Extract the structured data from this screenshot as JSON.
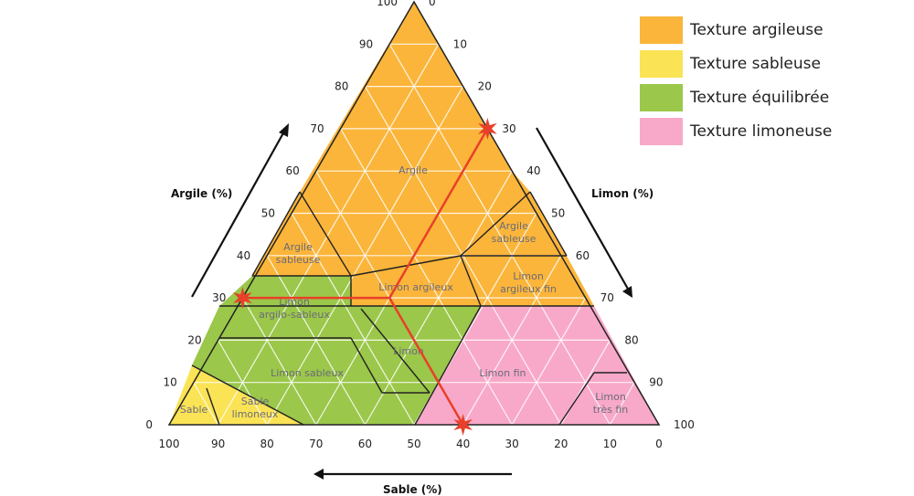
{
  "colors": {
    "clay": "#fbb53a",
    "sand": "#fbe356",
    "balanced": "#9bc74a",
    "silt": "#f8a9c9",
    "grid": "#ffffff",
    "border": "#222222",
    "marker": "#e8402a"
  },
  "legend": {
    "items": [
      {
        "label": "Texture argileuse",
        "color": "#fbb53a"
      },
      {
        "label": "Texture sableuse",
        "color": "#fbe356"
      },
      {
        "label": "Texture équilibrée",
        "color": "#9bc74a"
      },
      {
        "label": "Texture limoneuse",
        "color": "#f8a9c9"
      }
    ]
  },
  "axes": {
    "argile": {
      "title": "Argile (%)",
      "ticks": [
        "0",
        "10",
        "20",
        "30",
        "40",
        "50",
        "60",
        "70",
        "80",
        "90",
        "100"
      ]
    },
    "limon": {
      "title": "Limon (%)",
      "ticks": [
        "0",
        "10",
        "20",
        "30",
        "40",
        "50",
        "60",
        "70",
        "80",
        "90",
        "100"
      ]
    },
    "sable": {
      "title": "Sable (%)",
      "ticks": [
        "100",
        "90",
        "80",
        "70",
        "60",
        "50",
        "40",
        "30",
        "20",
        "10",
        "0"
      ]
    }
  },
  "zones": {
    "argile": "Argile",
    "argile_sableuse": [
      "Argile",
      "sableuse"
    ],
    "argile_sableuse_right": [
      "Argile",
      "sableuse"
    ],
    "limon_argileux": "Limon argileux",
    "limon_argileux_fin": [
      "Limon",
      "argileux fin"
    ],
    "limon_argilo_sableux": [
      "Limon",
      "argilo-sableux"
    ],
    "limon": "Limon",
    "limon_sableux": "Limon sableux",
    "limon_fin": "Limon fin",
    "sable": "Sable",
    "sable_limoneux": [
      "Sable",
      "limoneux"
    ],
    "limon_tres_fin": [
      "Limon",
      "très fin"
    ]
  },
  "example_point": {
    "argile": 30,
    "limon": 30,
    "sable": 40
  }
}
